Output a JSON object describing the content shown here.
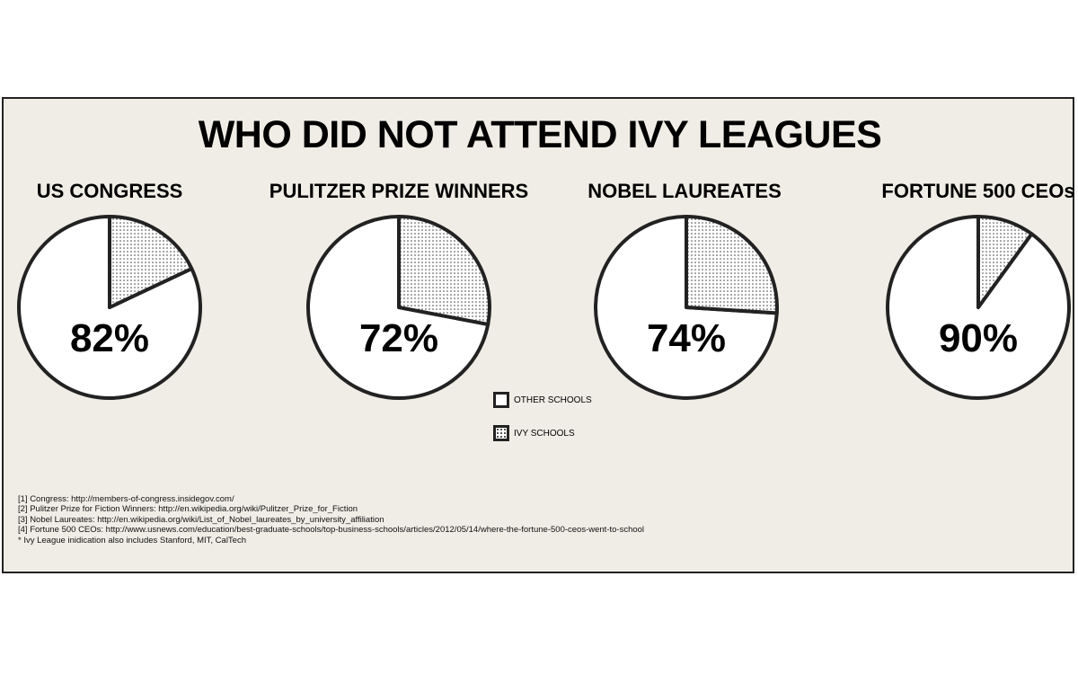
{
  "title": "WHO DID NOT ATTEND IVY LEAGUES",
  "chart_data": [
    {
      "type": "pie",
      "title": "US CONGRESS",
      "label": "82%",
      "slices": [
        {
          "name": "OTHER SCHOOLS",
          "value": 82
        },
        {
          "name": "IVY SCHOOLS",
          "value": 18
        }
      ]
    },
    {
      "type": "pie",
      "title": "PULITZER PRIZE WINNERS",
      "label": "72%",
      "slices": [
        {
          "name": "OTHER SCHOOLS",
          "value": 72
        },
        {
          "name": "IVY SCHOOLS",
          "value": 28
        }
      ]
    },
    {
      "type": "pie",
      "title": "NOBEL LAUREATES",
      "label": "74%",
      "slices": [
        {
          "name": "OTHER SCHOOLS",
          "value": 74
        },
        {
          "name": "IVY SCHOOLS",
          "value": 26
        }
      ]
    },
    {
      "type": "pie",
      "title": "FORTUNE 500 CEOs",
      "label": "90%",
      "slices": [
        {
          "name": "OTHER SCHOOLS",
          "value": 90
        },
        {
          "name": "IVY SCHOOLS",
          "value": 10
        }
      ]
    }
  ],
  "legend": [
    {
      "label": "OTHER SCHOOLS",
      "fill": "#ffffff"
    },
    {
      "label": "IVY SCHOOLS",
      "fill": "dotted"
    }
  ],
  "footnotes": [
    "[1] Congress: http://members-of-congress.insidegov.com/",
    "[2] Pulitzer Prize for Fiction Winners: http://en.wikipedia.org/wiki/Pulitzer_Prize_for_Fiction",
    "[3] Nobel Laureates: http://en.wikipedia.org/wiki/List_of_Nobel_laureates_by_university_affiliation",
    "[4] Fortune 500 CEOs: http://www.usnews.com/education/best-graduate-schools/top-business-schools/articles/2012/05/14/where-the-fortune-500-ceos-went-to-school",
    "* Ivy League inidication also includes Stanford, MIT, CalTech"
  ],
  "colors": {
    "background": "#efede5",
    "outline": "#222222",
    "other_fill": "#ffffff",
    "dot": "#333333"
  }
}
